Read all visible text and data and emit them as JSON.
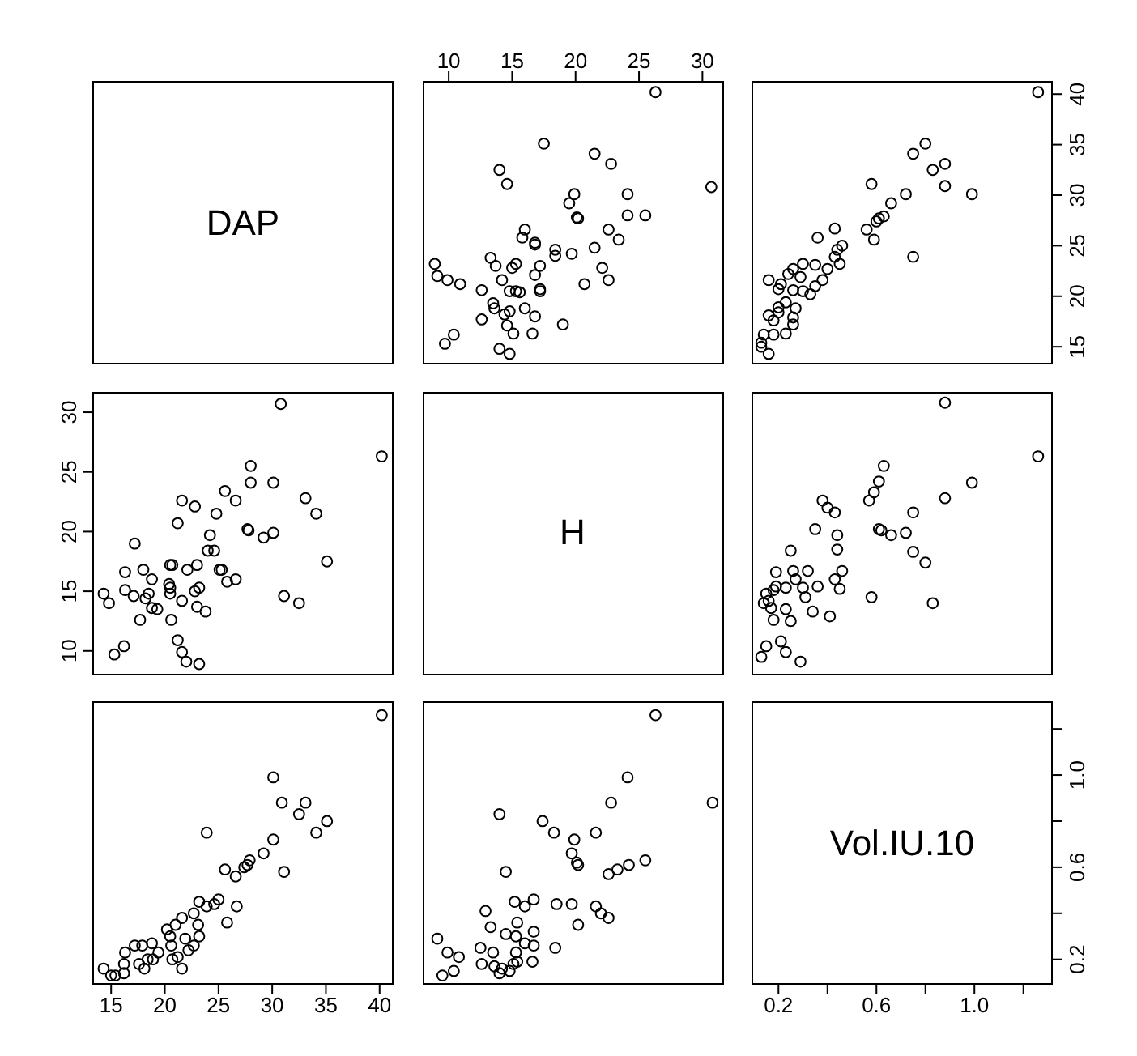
{
  "chart_data": [
    {
      "type": "other",
      "title": "DAP"
    },
    {
      "type": "scatter",
      "marker": "circle",
      "color": "#000000",
      "xlim": [
        7.95,
        31.7
      ],
      "ylim": [
        13.25,
        41.3
      ],
      "xticks": [
        10,
        15,
        20,
        25,
        30
      ],
      "tick_labels": "x",
      "x": [
        26.3,
        30.7,
        25.5,
        24.1,
        24.1,
        23.4,
        22.6,
        22.6,
        22.1,
        21.5,
        20.7,
        22.8,
        21.5,
        20.2,
        20.1,
        19.5,
        19.9,
        19.7,
        19.0,
        18.4,
        18.4,
        17.5,
        17.2,
        17.2,
        17.2,
        16.8,
        16.8,
        16.8,
        16.8,
        16.0,
        16.6,
        15.8,
        16.0,
        15.6,
        15.3,
        15.3,
        15.0,
        15.1,
        14.8,
        14.0,
        14.6,
        14.8,
        14.4,
        14.8,
        14.2,
        13.6,
        13.5,
        13.7,
        13.3,
        14.6,
        14.0,
        12.6,
        12.6,
        10.9,
        9.9,
        9.1,
        8.9,
        10.4,
        9.7
      ],
      "values": [
        40.2,
        30.8,
        28.0,
        28.0,
        30.1,
        25.6,
        26.6,
        21.6,
        22.8,
        24.8,
        21.2,
        33.1,
        34.1,
        27.7,
        27.8,
        29.2,
        30.1,
        24.2,
        17.2,
        24.0,
        24.6,
        35.1,
        20.5,
        20.7,
        23.0,
        22.1,
        25.1,
        25.3,
        18.0,
        18.8,
        16.3,
        25.8,
        26.6,
        20.4,
        20.5,
        23.2,
        22.8,
        16.3,
        14.3,
        14.8,
        17.1,
        18.5,
        18.2,
        20.5,
        21.6,
        18.8,
        19.3,
        23.0,
        23.8,
        31.1,
        32.5,
        17.7,
        20.6,
        21.2,
        21.6,
        22.0,
        23.2,
        16.2,
        15.3
      ]
    },
    {
      "type": "scatter",
      "marker": "circle",
      "color": "#000000",
      "xlim": [
        0.09,
        1.32
      ],
      "ylim": [
        13.25,
        41.3
      ],
      "yticks": [
        15,
        20,
        25,
        30,
        35,
        40
      ],
      "tick_labels": "y",
      "x": [
        1.26,
        0.99,
        0.88,
        0.88,
        0.83,
        0.8,
        0.75,
        0.75,
        0.72,
        0.66,
        0.63,
        0.61,
        0.6,
        0.58,
        0.59,
        0.56,
        0.46,
        0.44,
        0.45,
        0.43,
        0.43,
        0.4,
        0.38,
        0.36,
        0.35,
        0.35,
        0.33,
        0.3,
        0.3,
        0.29,
        0.23,
        0.26,
        0.26,
        0.27,
        0.23,
        0.26,
        0.26,
        0.2,
        0.18,
        0.16,
        0.18,
        0.2,
        0.16,
        0.21,
        0.16,
        0.13,
        0.14,
        0.13,
        0.24,
        0.2
      ],
      "values": [
        40.2,
        30.1,
        30.9,
        33.1,
        32.5,
        35.1,
        34.1,
        23.9,
        30.1,
        29.2,
        27.9,
        27.7,
        27.4,
        31.1,
        25.6,
        26.6,
        25.0,
        24.6,
        23.2,
        23.9,
        26.7,
        22.7,
        21.6,
        25.8,
        21.0,
        23.1,
        20.2,
        20.5,
        23.2,
        21.9,
        16.3,
        17.2,
        17.9,
        18.8,
        19.4,
        20.6,
        22.7,
        18.4,
        17.6,
        18.1,
        16.2,
        18.9,
        21.6,
        21.2,
        14.3,
        15.0,
        16.2,
        15.4,
        22.2,
        20.7
      ]
    },
    {
      "type": "scatter",
      "marker": "circle",
      "color": "#000000",
      "xlim": [
        13.25,
        41.3
      ],
      "ylim": [
        7.95,
        31.7
      ],
      "yticks": [
        10,
        15,
        20,
        25,
        30
      ],
      "tick_labels": "y",
      "x": [
        40.2,
        30.8,
        28.0,
        28.0,
        30.1,
        25.6,
        26.6,
        21.6,
        22.8,
        24.8,
        21.2,
        33.1,
        34.1,
        27.7,
        27.8,
        29.2,
        30.1,
        24.2,
        17.2,
        24.0,
        24.6,
        35.1,
        20.5,
        20.7,
        23.0,
        22.1,
        25.1,
        25.3,
        18.0,
        18.8,
        16.3,
        25.8,
        26.6,
        20.4,
        20.5,
        23.2,
        22.8,
        16.3,
        14.3,
        14.8,
        17.1,
        18.5,
        18.2,
        20.5,
        21.6,
        18.8,
        19.3,
        23.0,
        23.8,
        31.1,
        32.5,
        17.7,
        20.6,
        21.2,
        21.6,
        22.0,
        23.2,
        16.2,
        15.3
      ],
      "values": [
        26.3,
        30.7,
        25.5,
        24.1,
        24.1,
        23.4,
        22.6,
        22.6,
        22.1,
        21.5,
        20.7,
        22.8,
        21.5,
        20.2,
        20.1,
        19.5,
        19.9,
        19.7,
        19.0,
        18.4,
        18.4,
        17.5,
        17.2,
        17.2,
        17.2,
        16.8,
        16.8,
        16.8,
        16.8,
        16.0,
        16.6,
        15.8,
        16.0,
        15.6,
        15.3,
        15.3,
        15.0,
        15.1,
        14.8,
        14.0,
        14.6,
        14.8,
        14.4,
        14.8,
        14.2,
        13.6,
        13.5,
        13.7,
        13.3,
        14.6,
        14.0,
        12.6,
        12.6,
        10.9,
        9.9,
        9.1,
        8.9,
        10.4,
        9.7
      ]
    },
    {
      "type": "other",
      "title": "H"
    },
    {
      "type": "scatter",
      "marker": "circle",
      "color": "#000000",
      "xlim": [
        0.09,
        1.32
      ],
      "ylim": [
        7.95,
        31.7
      ],
      "tick_labels": false,
      "x": [
        1.26,
        0.88,
        0.99,
        0.88,
        0.83,
        0.8,
        0.75,
        0.72,
        0.75,
        0.66,
        0.62,
        0.61,
        0.63,
        0.61,
        0.59,
        0.57,
        0.58,
        0.45,
        0.46,
        0.43,
        0.44,
        0.44,
        0.43,
        0.4,
        0.38,
        0.41,
        0.34,
        0.36,
        0.35,
        0.31,
        0.3,
        0.32,
        0.26,
        0.27,
        0.25,
        0.23,
        0.29,
        0.23,
        0.21,
        0.25,
        0.23,
        0.18,
        0.17,
        0.16,
        0.15,
        0.14,
        0.13,
        0.15,
        0.19,
        0.19,
        0.18
      ],
      "values": [
        26.3,
        30.8,
        24.1,
        22.8,
        14.0,
        17.4,
        18.3,
        19.9,
        21.6,
        19.7,
        20.1,
        20.2,
        25.5,
        24.2,
        23.3,
        22.6,
        14.5,
        15.2,
        16.7,
        16.0,
        18.5,
        19.7,
        21.6,
        22.0,
        22.6,
        12.9,
        13.3,
        15.4,
        20.2,
        14.5,
        15.3,
        16.7,
        16.7,
        16.0,
        18.4,
        15.3,
        9.1,
        9.9,
        10.8,
        12.5,
        13.5,
        12.6,
        13.6,
        14.2,
        14.8,
        14.0,
        9.5,
        10.4,
        16.6,
        15.4,
        15.1
      ]
    },
    {
      "type": "scatter",
      "marker": "circle",
      "color": "#000000",
      "xlim": [
        13.25,
        41.3
      ],
      "ylim": [
        0.09,
        1.32
      ],
      "xticks": [
        15,
        20,
        25,
        30,
        35,
        40
      ],
      "tick_labels": "x",
      "x": [
        40.2,
        30.1,
        30.9,
        33.1,
        32.5,
        35.1,
        34.1,
        23.9,
        30.1,
        29.2,
        27.9,
        27.7,
        27.4,
        31.1,
        25.6,
        26.6,
        25.0,
        24.6,
        23.2,
        23.9,
        26.7,
        22.7,
        21.6,
        25.8,
        21.0,
        23.1,
        20.2,
        20.5,
        23.2,
        21.9,
        16.3,
        17.2,
        17.9,
        18.8,
        19.4,
        20.6,
        22.7,
        18.4,
        17.6,
        18.1,
        16.2,
        18.9,
        21.6,
        21.2,
        14.3,
        15.0,
        16.2,
        15.4,
        22.2,
        20.7
      ],
      "values": [
        1.26,
        0.99,
        0.88,
        0.88,
        0.83,
        0.8,
        0.75,
        0.75,
        0.72,
        0.66,
        0.63,
        0.61,
        0.6,
        0.58,
        0.59,
        0.56,
        0.46,
        0.44,
        0.45,
        0.43,
        0.43,
        0.4,
        0.38,
        0.36,
        0.35,
        0.35,
        0.33,
        0.3,
        0.3,
        0.29,
        0.23,
        0.26,
        0.26,
        0.27,
        0.23,
        0.26,
        0.26,
        0.2,
        0.18,
        0.16,
        0.18,
        0.2,
        0.16,
        0.21,
        0.16,
        0.13,
        0.14,
        0.13,
        0.24,
        0.2
      ]
    },
    {
      "type": "scatter",
      "marker": "circle",
      "color": "#000000",
      "xlim": [
        7.95,
        31.7
      ],
      "ylim": [
        0.09,
        1.32
      ],
      "tick_labels": false,
      "x": [
        26.3,
        30.8,
        24.1,
        22.8,
        14.0,
        17.4,
        18.3,
        19.9,
        21.6,
        19.7,
        20.1,
        20.2,
        25.5,
        24.2,
        23.3,
        22.6,
        14.5,
        15.2,
        16.7,
        16.0,
        18.5,
        19.7,
        21.6,
        22.0,
        22.6,
        12.9,
        13.3,
        15.4,
        20.2,
        14.5,
        15.3,
        16.7,
        16.7,
        16.0,
        18.4,
        15.3,
        9.1,
        9.9,
        10.8,
        12.5,
        13.5,
        12.6,
        13.6,
        14.2,
        14.8,
        14.0,
        9.5,
        10.4,
        16.6,
        15.4,
        15.1
      ],
      "values": [
        1.26,
        0.88,
        0.99,
        0.88,
        0.83,
        0.8,
        0.75,
        0.72,
        0.75,
        0.66,
        0.62,
        0.61,
        0.63,
        0.61,
        0.59,
        0.57,
        0.58,
        0.45,
        0.46,
        0.43,
        0.44,
        0.44,
        0.43,
        0.4,
        0.38,
        0.41,
        0.34,
        0.36,
        0.35,
        0.31,
        0.3,
        0.32,
        0.26,
        0.27,
        0.25,
        0.23,
        0.29,
        0.23,
        0.21,
        0.25,
        0.23,
        0.18,
        0.17,
        0.16,
        0.15,
        0.14,
        0.13,
        0.15,
        0.19,
        0.19,
        0.18
      ]
    },
    {
      "type": "scatter",
      "title": "Vol.IU.10",
      "xlim": [
        0.09,
        1.32
      ],
      "xticks": [
        0.2,
        {
          "value": 0.4,
          "label": null
        },
        0.6,
        {
          "value": 0.8,
          "label": null
        },
        {
          "value": 1.0,
          "label": "1.0"
        },
        {
          "value": 1.2,
          "label": null
        }
      ],
      "ylim": [
        0.09,
        1.32
      ],
      "yticks": [
        0.2,
        {
          "value": 0.4,
          "label": null
        },
        0.6,
        {
          "value": 0.8,
          "label": null
        },
        {
          "value": 1.0,
          "label": "1.0"
        },
        {
          "value": 1.2,
          "label": null
        }
      ]
    }
  ]
}
